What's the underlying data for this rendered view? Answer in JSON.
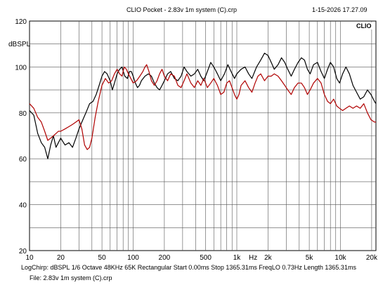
{
  "header": {
    "title": "CLIO Pocket - 2.83v 1m system (C).crp",
    "timestamp": "1-15-2026 17.27.09",
    "brand": "CLIO"
  },
  "status": {
    "line1": "LogChirp:  dBSPL   1/6 Octave   48KHz   65K   Rectangular   Start 0.00ms    Stop 1365.31ms    FreqLO 0.73Hz    Length 1365.31ms",
    "line2": "File: 2.83v 1m system (C).crp"
  },
  "chart_data": {
    "type": "line",
    "title": "CLIO Pocket - 2.83v 1m system (C).crp",
    "ylabel": "dBSPL",
    "xlabel": "Hz",
    "xscale": "log",
    "xlim": [
      10,
      22000
    ],
    "ylim": [
      20,
      120
    ],
    "grid": true,
    "y_ticks": [
      120,
      100,
      80,
      60,
      40,
      20
    ],
    "x_ticks": [
      {
        "v": 10,
        "label": "10"
      },
      {
        "v": 20,
        "label": "20"
      },
      {
        "v": 50,
        "label": "50"
      },
      {
        "v": 100,
        "label": "100"
      },
      {
        "v": 200,
        "label": "200"
      },
      {
        "v": 500,
        "label": "500"
      },
      {
        "v": 1000,
        "label": "1k"
      },
      {
        "v": 2000,
        "label": "2k"
      },
      {
        "v": 5000,
        "label": "5k"
      },
      {
        "v": 10000,
        "label": "10k"
      },
      {
        "v": 20000,
        "label": "20k"
      }
    ],
    "series": [
      {
        "color": "#000000",
        "points": [
          [
            10,
            81
          ],
          [
            11,
            79
          ],
          [
            12,
            71
          ],
          [
            13,
            67
          ],
          [
            14,
            65
          ],
          [
            15,
            60
          ],
          [
            16,
            66
          ],
          [
            17,
            70
          ],
          [
            18,
            65
          ],
          [
            19,
            67
          ],
          [
            20,
            69
          ],
          [
            22,
            66
          ],
          [
            24,
            67
          ],
          [
            26,
            65
          ],
          [
            28,
            69
          ],
          [
            30,
            73
          ],
          [
            32,
            76
          ],
          [
            35,
            80
          ],
          [
            38,
            84
          ],
          [
            41,
            85
          ],
          [
            44,
            88
          ],
          [
            47,
            92
          ],
          [
            50,
            96
          ],
          [
            53,
            98
          ],
          [
            56,
            97
          ],
          [
            60,
            94
          ],
          [
            63,
            90
          ],
          [
            66,
            93
          ],
          [
            70,
            97
          ],
          [
            74,
            99
          ],
          [
            78,
            100
          ],
          [
            83,
            96
          ],
          [
            88,
            95
          ],
          [
            92,
            98
          ],
          [
            96,
            98
          ],
          [
            100,
            96
          ],
          [
            105,
            93
          ],
          [
            110,
            91
          ],
          [
            115,
            92
          ],
          [
            120,
            94
          ],
          [
            130,
            96
          ],
          [
            140,
            97
          ],
          [
            150,
            96
          ],
          [
            160,
            93
          ],
          [
            170,
            91
          ],
          [
            180,
            90
          ],
          [
            190,
            92
          ],
          [
            200,
            94
          ],
          [
            215,
            97
          ],
          [
            230,
            98
          ],
          [
            250,
            95
          ],
          [
            270,
            94
          ],
          [
            290,
            96
          ],
          [
            310,
            100
          ],
          [
            330,
            98
          ],
          [
            360,
            96
          ],
          [
            390,
            97
          ],
          [
            420,
            99
          ],
          [
            450,
            96
          ],
          [
            480,
            94
          ],
          [
            520,
            98
          ],
          [
            560,
            102
          ],
          [
            600,
            100
          ],
          [
            650,
            97
          ],
          [
            700,
            94
          ],
          [
            760,
            97
          ],
          [
            820,
            101
          ],
          [
            880,
            98
          ],
          [
            950,
            95
          ],
          [
            1000,
            97
          ],
          [
            1100,
            99
          ],
          [
            1200,
            100
          ],
          [
            1300,
            97
          ],
          [
            1400,
            95
          ],
          [
            1550,
            100
          ],
          [
            1700,
            103
          ],
          [
            1850,
            106
          ],
          [
            2000,
            105
          ],
          [
            2150,
            102
          ],
          [
            2300,
            99
          ],
          [
            2500,
            101
          ],
          [
            2700,
            104
          ],
          [
            2900,
            102
          ],
          [
            3100,
            99
          ],
          [
            3350,
            96
          ],
          [
            3600,
            99
          ],
          [
            3900,
            102
          ],
          [
            4200,
            104
          ],
          [
            4500,
            103
          ],
          [
            4800,
            99
          ],
          [
            5100,
            97
          ],
          [
            5500,
            101
          ],
          [
            6000,
            102
          ],
          [
            6500,
            98
          ],
          [
            7000,
            95
          ],
          [
            7500,
            99
          ],
          [
            8000,
            102
          ],
          [
            8600,
            100
          ],
          [
            9200,
            95
          ],
          [
            9800,
            93
          ],
          [
            10500,
            97
          ],
          [
            11300,
            100
          ],
          [
            12200,
            97
          ],
          [
            13200,
            92
          ],
          [
            14300,
            89
          ],
          [
            15500,
            86
          ],
          [
            16800,
            87
          ],
          [
            18200,
            90
          ],
          [
            19700,
            88
          ],
          [
            21300,
            85
          ],
          [
            22000,
            84
          ]
        ]
      },
      {
        "color": "#b00000",
        "points": [
          [
            10,
            84
          ],
          [
            11,
            82
          ],
          [
            12,
            78
          ],
          [
            13,
            76
          ],
          [
            14,
            72
          ],
          [
            15,
            68
          ],
          [
            16,
            69
          ],
          [
            17,
            70
          ],
          [
            18,
            71
          ],
          [
            19,
            72
          ],
          [
            20,
            72
          ],
          [
            22,
            73
          ],
          [
            24,
            74
          ],
          [
            26,
            75
          ],
          [
            28,
            76
          ],
          [
            30,
            77
          ],
          [
            32,
            73
          ],
          [
            34,
            66
          ],
          [
            36,
            64
          ],
          [
            38,
            65
          ],
          [
            40,
            69
          ],
          [
            43,
            78
          ],
          [
            46,
            85
          ],
          [
            50,
            92
          ],
          [
            54,
            95
          ],
          [
            58,
            93
          ],
          [
            62,
            94
          ],
          [
            66,
            97
          ],
          [
            70,
            99
          ],
          [
            74,
            97
          ],
          [
            78,
            96
          ],
          [
            82,
            100
          ],
          [
            86,
            99
          ],
          [
            90,
            97
          ],
          [
            95,
            95
          ],
          [
            100,
            93
          ],
          [
            108,
            94
          ],
          [
            116,
            96
          ],
          [
            124,
            98
          ],
          [
            130,
            100
          ],
          [
            135,
            101
          ],
          [
            142,
            98
          ],
          [
            150,
            94
          ],
          [
            160,
            92
          ],
          [
            170,
            94
          ],
          [
            180,
            97
          ],
          [
            190,
            99
          ],
          [
            200,
            96
          ],
          [
            215,
            94
          ],
          [
            230,
            97
          ],
          [
            250,
            96
          ],
          [
            270,
            92
          ],
          [
            290,
            91
          ],
          [
            310,
            94
          ],
          [
            330,
            97
          ],
          [
            360,
            93
          ],
          [
            390,
            91
          ],
          [
            420,
            94
          ],
          [
            450,
            92
          ],
          [
            480,
            95
          ],
          [
            520,
            91
          ],
          [
            560,
            93
          ],
          [
            600,
            95
          ],
          [
            650,
            92
          ],
          [
            700,
            88
          ],
          [
            750,
            89
          ],
          [
            800,
            93
          ],
          [
            850,
            94
          ],
          [
            900,
            91
          ],
          [
            950,
            88
          ],
          [
            1000,
            86
          ],
          [
            1050,
            88
          ],
          [
            1100,
            92
          ],
          [
            1200,
            94
          ],
          [
            1300,
            91
          ],
          [
            1400,
            89
          ],
          [
            1500,
            93
          ],
          [
            1600,
            96
          ],
          [
            1700,
            97
          ],
          [
            1850,
            94
          ],
          [
            2000,
            96
          ],
          [
            2150,
            96
          ],
          [
            2300,
            97
          ],
          [
            2500,
            96
          ],
          [
            2700,
            94
          ],
          [
            2900,
            92
          ],
          [
            3100,
            90
          ],
          [
            3350,
            88
          ],
          [
            3600,
            91
          ],
          [
            3900,
            93
          ],
          [
            4200,
            93
          ],
          [
            4500,
            91
          ],
          [
            4800,
            88
          ],
          [
            5100,
            90
          ],
          [
            5500,
            93
          ],
          [
            6000,
            95
          ],
          [
            6500,
            93
          ],
          [
            7000,
            88
          ],
          [
            7500,
            85
          ],
          [
            8000,
            84
          ],
          [
            8600,
            86
          ],
          [
            9200,
            83
          ],
          [
            9800,
            82
          ],
          [
            10500,
            81
          ],
          [
            11300,
            82
          ],
          [
            12200,
            83
          ],
          [
            13200,
            82
          ],
          [
            14300,
            83
          ],
          [
            15500,
            82
          ],
          [
            16800,
            84
          ],
          [
            18200,
            80
          ],
          [
            19700,
            77
          ],
          [
            21300,
            76
          ],
          [
            22000,
            76
          ]
        ]
      }
    ]
  }
}
